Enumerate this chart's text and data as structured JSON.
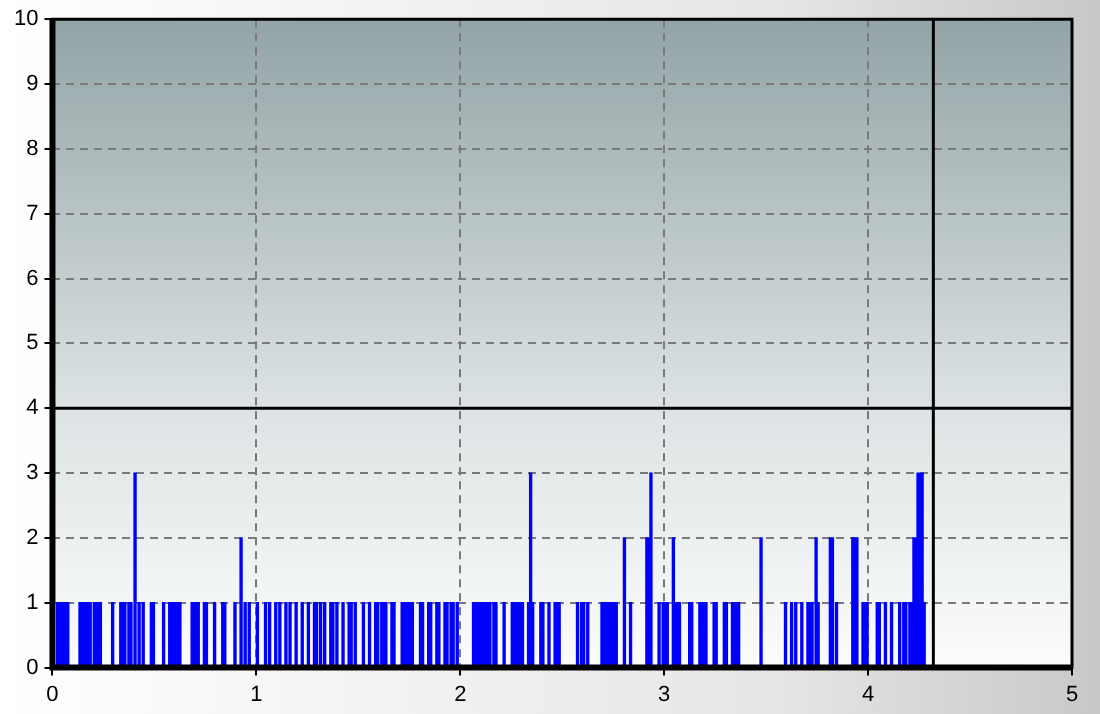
{
  "chart_data": {
    "type": "histogram",
    "bins": [
      0.02,
      0.08,
      0.13,
      0.19,
      0.2,
      0.24,
      0.29,
      0.3,
      0.33,
      0.36,
      0.37,
      0.39,
      0.4,
      0.41,
      0.42,
      0.43,
      0.44,
      0.45,
      0.48,
      0.5,
      0.54,
      0.55,
      0.57,
      0.63,
      0.68,
      0.72,
      0.74,
      0.76,
      0.79,
      0.8,
      0.83,
      0.85,
      0.89,
      0.9,
      0.92,
      0.93,
      0.94,
      0.95,
      0.96,
      0.97,
      1.0,
      1.01,
      1.04,
      1.05,
      1.06,
      1.07,
      1.09,
      1.1,
      1.11,
      1.12,
      1.14,
      1.15,
      1.16,
      1.17,
      1.19,
      1.2,
      1.22,
      1.23,
      1.25,
      1.26,
      1.28,
      1.3,
      1.31,
      1.32,
      1.33,
      1.34,
      1.36,
      1.38,
      1.39,
      1.4,
      1.42,
      1.43,
      1.45,
      1.47,
      1.48,
      1.49,
      1.52,
      1.53,
      1.55,
      1.56,
      1.58,
      1.6,
      1.61,
      1.64,
      1.66,
      1.68,
      1.71,
      1.77,
      1.8,
      1.82,
      1.84,
      1.86,
      1.88,
      1.9,
      1.92,
      1.94,
      1.95,
      1.97,
      1.98,
      1.99,
      2.06,
      2.15,
      2.16,
      2.18,
      2.21,
      2.22,
      2.25,
      2.31,
      2.33,
      2.34,
      2.35,
      2.36,
      2.39,
      2.41,
      2.43,
      2.44,
      2.46,
      2.49,
      2.57,
      2.58,
      2.59,
      2.61,
      2.62,
      2.63,
      2.69,
      2.77,
      2.8,
      2.81,
      2.83,
      2.84,
      2.91,
      2.93,
      2.94,
      2.97,
      2.98,
      2.99,
      3.02,
      3.04,
      3.05,
      3.08,
      3.12,
      3.14,
      3.17,
      3.21,
      3.24,
      3.26,
      3.29,
      3.31,
      3.33,
      3.37,
      3.47,
      3.48,
      3.59,
      3.6,
      3.62,
      3.63,
      3.64,
      3.65,
      3.67,
      3.68,
      3.7,
      3.73,
      3.74,
      3.75,
      3.76,
      3.81,
      3.83,
      3.84,
      3.85,
      3.92,
      3.95,
      3.97,
      4.0,
      4.04,
      4.06,
      4.08,
      4.09,
      4.11,
      4.12,
      4.15,
      4.16,
      4.17,
      4.19,
      4.2,
      4.22,
      4.24,
      4.27,
      4.28,
      4.31
    ],
    "values": [
      1,
      0,
      1,
      0,
      1,
      0,
      1,
      0,
      1,
      0,
      1,
      0,
      3,
      0,
      1,
      0,
      1,
      0,
      1,
      0,
      1,
      0,
      1,
      0,
      1,
      0,
      1,
      0,
      1,
      0,
      1,
      0,
      1,
      0,
      2,
      0,
      1,
      0,
      1,
      0,
      1,
      0,
      1,
      0,
      1,
      0,
      1,
      0,
      1,
      0,
      1,
      0,
      1,
      0,
      1,
      0,
      1,
      0,
      1,
      0,
      1,
      0,
      1,
      0,
      1,
      0,
      1,
      0,
      1,
      0,
      1,
      0,
      1,
      0,
      1,
      0,
      1,
      0,
      1,
      0,
      1,
      0,
      1,
      0,
      1,
      0,
      1,
      0,
      1,
      0,
      1,
      0,
      1,
      0,
      1,
      0,
      1,
      0,
      1,
      0,
      1,
      0,
      1,
      0,
      1,
      0,
      1,
      0,
      1,
      3,
      1,
      0,
      1,
      0,
      1,
      0,
      1,
      0,
      1,
      0,
      1,
      0,
      1,
      0,
      1,
      0,
      2,
      0,
      1,
      0,
      2,
      3,
      0,
      1,
      0,
      1,
      0,
      2,
      1,
      0,
      1,
      0,
      1,
      0,
      1,
      0,
      1,
      0,
      1,
      0,
      2,
      0,
      1,
      0,
      1,
      0,
      1,
      0,
      1,
      0,
      1,
      0,
      2,
      1,
      0,
      2,
      0,
      1,
      0,
      2,
      0,
      1,
      0,
      1,
      0,
      1,
      0,
      1,
      0,
      1,
      0,
      1,
      0,
      1,
      2,
      3,
      1,
      0
    ],
    "color": "#0000ff",
    "xlim": [
      0,
      5
    ],
    "xticks": [
      0,
      1,
      2,
      3,
      4,
      5
    ],
    "ylim": [
      0,
      10
    ],
    "yticks": [
      0,
      1,
      2,
      3,
      4,
      5,
      6,
      7,
      8,
      9,
      10
    ],
    "grid": true,
    "ref_lines": [
      {
        "axis": "y",
        "value": 4,
        "color": "#000000"
      },
      {
        "axis": "x",
        "value": 4.32,
        "color": "#000000"
      }
    ]
  }
}
